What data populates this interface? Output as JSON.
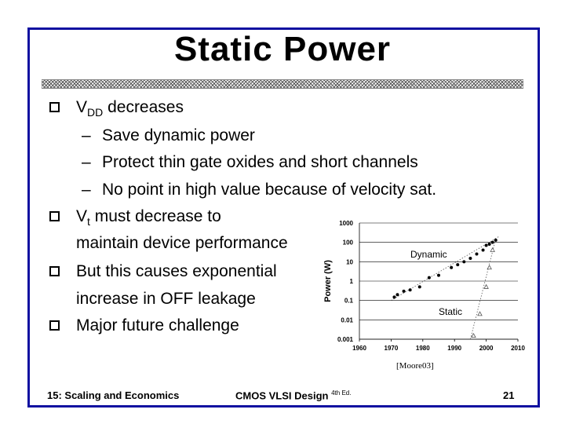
{
  "slide": {
    "title": "Static Power",
    "bullets": [
      {
        "main": "V",
        "sub": "DD",
        "rest": " decreases"
      },
      {
        "main": "V",
        "sub": "t",
        "rest": " must decrease to"
      },
      {
        "text": "But this causes exponential"
      },
      {
        "text": "Major future challenge"
      }
    ],
    "bullet2_cont": "maintain device performance",
    "bullet3_cont": "increase in OFF leakage",
    "subitems": [
      "Save dynamic power",
      "Protect thin gate oxides and short channels",
      "No point in high value because of velocity sat."
    ],
    "dash": "–",
    "citation": "[Moore03]",
    "footer": {
      "left": "15: Scaling and Economics",
      "center": "CMOS VLSI Design",
      "edition": "4th Ed.",
      "page": "21"
    }
  },
  "chart_data": {
    "type": "scatter",
    "ylabel": "Power (W)",
    "xlim": [
      1960,
      2010
    ],
    "ylim_log10": [
      -3,
      3
    ],
    "y_scale": "log",
    "x_ticks": [
      "1960",
      "1970",
      "1980",
      "1990",
      "2000",
      "2010"
    ],
    "y_ticks": [
      "1000",
      "100",
      "10",
      "1",
      "0.1",
      "0.01",
      "0.001"
    ],
    "series": [
      {
        "name": "Dynamic",
        "marker": "filled-circle",
        "x": [
          1971,
          1972,
          1974,
          1976,
          1979,
          1982,
          1985,
          1989,
          1991,
          1993,
          1995,
          1997,
          1999,
          2000,
          2001,
          2002,
          2003
        ],
        "y": [
          0.15,
          0.2,
          0.3,
          0.35,
          0.5,
          1.5,
          2,
          5,
          7,
          10,
          15,
          25,
          40,
          70,
          80,
          100,
          130
        ]
      },
      {
        "name": "Static",
        "marker": "open-triangle",
        "x": [
          1996,
          1998,
          2000,
          2001,
          2002
        ],
        "y": [
          0.0015,
          0.02,
          0.5,
          5,
          40
        ]
      }
    ],
    "trendlines": [
      {
        "series": "Dynamic",
        "from": [
          1970,
          0.1
        ],
        "to": [
          2004,
          200
        ]
      },
      {
        "series": "Static",
        "from": [
          1995,
          0.001
        ],
        "to": [
          2003,
          150
        ]
      }
    ],
    "annotations": [
      "Dynamic",
      "Static"
    ]
  }
}
